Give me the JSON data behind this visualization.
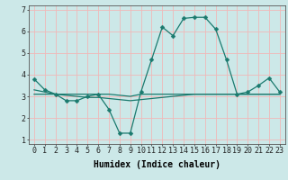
{
  "title": "",
  "xlabel": "Humidex (Indice chaleur)",
  "ylabel": "",
  "background_color": "#cce8e8",
  "grid_color": "#f0b8b8",
  "line_color": "#1a7a6e",
  "xlim": [
    -0.5,
    23.5
  ],
  "ylim": [
    0.8,
    7.2
  ],
  "yticks": [
    1,
    2,
    3,
    4,
    5,
    6,
    7
  ],
  "xticks": [
    0,
    1,
    2,
    3,
    4,
    5,
    6,
    7,
    8,
    9,
    10,
    11,
    12,
    13,
    14,
    15,
    16,
    17,
    18,
    19,
    20,
    21,
    22,
    23
  ],
  "series1_x": [
    0,
    1,
    2,
    3,
    4,
    5,
    6,
    7,
    8,
    9,
    10,
    11,
    12,
    13,
    14,
    15,
    16,
    17,
    18,
    19,
    20,
    21,
    22,
    23
  ],
  "series1_y": [
    3.8,
    3.3,
    3.1,
    2.8,
    2.8,
    3.0,
    3.1,
    2.4,
    1.3,
    1.3,
    3.2,
    4.7,
    6.2,
    5.8,
    6.6,
    6.65,
    6.65,
    6.1,
    4.7,
    3.1,
    3.2,
    3.5,
    3.85,
    3.2
  ],
  "series2_x": [
    0,
    1,
    2,
    3,
    4,
    5,
    6,
    7,
    8,
    9,
    10,
    11,
    12,
    13,
    14,
    15,
    16,
    17,
    18,
    19,
    20,
    21,
    22,
    23
  ],
  "series2_y": [
    3.1,
    3.1,
    3.1,
    3.1,
    3.1,
    3.1,
    3.1,
    3.1,
    3.05,
    3.0,
    3.1,
    3.1,
    3.1,
    3.1,
    3.1,
    3.1,
    3.1,
    3.1,
    3.1,
    3.1,
    3.1,
    3.1,
    3.1,
    3.1
  ],
  "series3_x": [
    0,
    1,
    2,
    3,
    4,
    5,
    6,
    7,
    8,
    9,
    10,
    11,
    12,
    13,
    14,
    15,
    16,
    17,
    18,
    19,
    20,
    21,
    22,
    23
  ],
  "series3_y": [
    3.3,
    3.2,
    3.1,
    3.05,
    3.0,
    2.95,
    2.95,
    2.9,
    2.85,
    2.8,
    2.85,
    2.9,
    2.95,
    3.0,
    3.05,
    3.1,
    3.1,
    3.1,
    3.1,
    3.1,
    3.1,
    3.1,
    3.1,
    3.1
  ],
  "xlabel_fontsize": 7,
  "tick_fontsize": 6,
  "marker_size": 2.5,
  "linewidth": 0.9
}
